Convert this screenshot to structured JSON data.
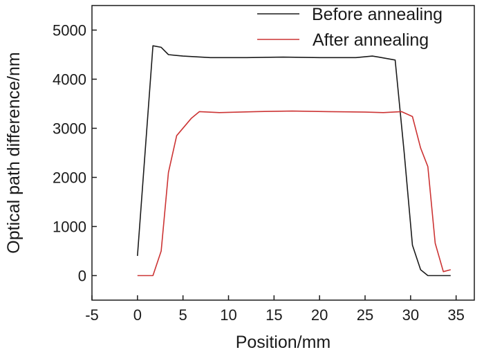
{
  "chart_data": {
    "type": "line",
    "title": "",
    "xlabel": "Position/mm",
    "ylabel": "Optical path difference/nm",
    "xlim": [
      -5,
      37
    ],
    "ylim": [
      -500,
      5500
    ],
    "xticks": [
      -5,
      0,
      5,
      10,
      15,
      20,
      25,
      30,
      35
    ],
    "yticks": [
      0,
      1000,
      2000,
      3000,
      4000,
      5000
    ],
    "grid": false,
    "legend_position": "top-right",
    "series": [
      {
        "name": "Before annealing",
        "color": "#1a1a1a",
        "x": [
          0.0,
          1.7,
          2.6,
          3.4,
          5.0,
          8.0,
          12.0,
          16.0,
          20.0,
          24.0,
          25.8,
          26.5,
          28.3,
          29.3,
          30.2,
          31.1,
          31.9,
          34.4
        ],
        "y": [
          400,
          4680,
          4650,
          4500,
          4470,
          4440,
          4440,
          4450,
          4440,
          4440,
          4470,
          4450,
          4390,
          2500,
          620,
          120,
          0,
          0
        ]
      },
      {
        "name": "After annealing",
        "color": "#cc3333",
        "x": [
          0.0,
          1.7,
          2.6,
          3.4,
          4.3,
          5.9,
          6.8,
          9.0,
          13.0,
          17.0,
          21.0,
          25.0,
          27.0,
          29.0,
          30.2,
          31.1,
          31.9,
          32.7,
          33.6,
          34.4
        ],
        "y": [
          0,
          0,
          500,
          2100,
          2850,
          3200,
          3340,
          3320,
          3340,
          3350,
          3340,
          3330,
          3320,
          3340,
          3240,
          2600,
          2220,
          660,
          80,
          120
        ]
      }
    ]
  }
}
